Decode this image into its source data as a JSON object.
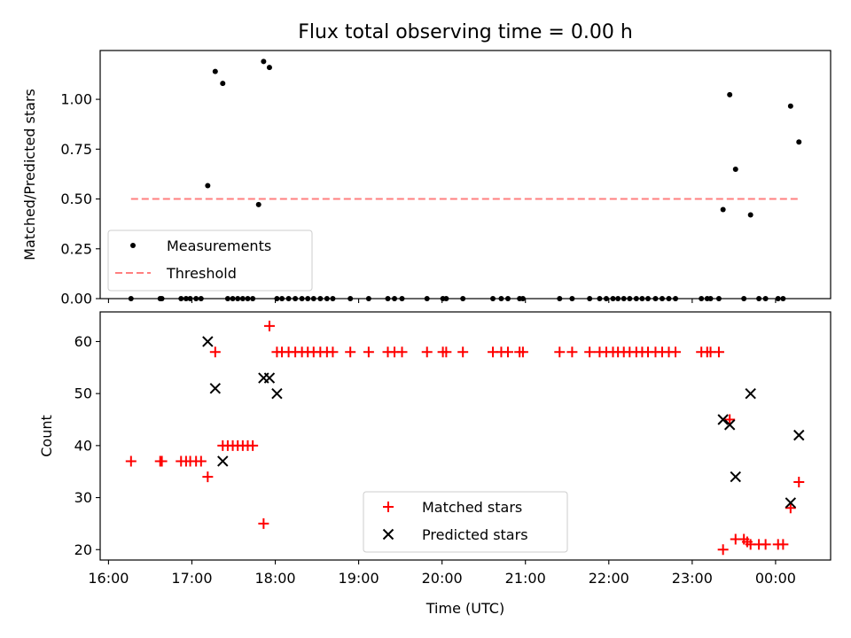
{
  "title": "Flux total observing time = 0.00 h",
  "chart_data": [
    {
      "type": "scatter",
      "panel": "top",
      "title": "Flux total observing time = 0.00 h",
      "xlabel": "",
      "ylabel": "Matched/Predicted stars",
      "xlim": [
        15.9,
        24.66
      ],
      "ylim": [
        0.0,
        1.245
      ],
      "yticks": [
        0.0,
        0.25,
        0.5,
        0.75,
        1.0
      ],
      "ytick_labels": [
        "0.00",
        "0.25",
        "0.50",
        "0.75",
        "1.00"
      ],
      "legend": {
        "placement": "lower-left",
        "entries": [
          "Measurements",
          "Threshold"
        ]
      },
      "series": [
        {
          "name": "Measurements",
          "marker": "dot",
          "color": "#000000",
          "x": [
            16.27,
            16.62,
            16.64,
            16.87,
            16.93,
            16.98,
            17.05,
            17.11,
            17.19,
            17.28,
            17.37,
            17.43,
            17.49,
            17.55,
            17.61,
            17.67,
            17.73,
            17.8,
            17.86,
            17.93,
            18.02,
            18.08,
            18.16,
            18.24,
            18.32,
            18.39,
            18.46,
            18.54,
            18.62,
            18.69,
            18.9,
            19.12,
            19.35,
            19.43,
            19.52,
            19.82,
            20.01,
            20.05,
            20.25,
            20.61,
            20.71,
            20.79,
            20.93,
            20.97,
            21.41,
            21.56,
            21.77,
            21.89,
            21.97,
            22.05,
            22.11,
            22.18,
            22.25,
            22.33,
            22.4,
            22.47,
            22.56,
            22.64,
            22.72,
            22.8,
            23.11,
            23.18,
            23.22,
            23.32,
            23.37,
            23.45,
            23.52,
            23.62,
            23.7,
            23.8,
            23.88,
            24.03,
            24.09,
            24.18,
            24.28
          ],
          "y": [
            0.0,
            0.0,
            0.0,
            0.0,
            0.0,
            0.0,
            0.0,
            0.0,
            0.567,
            1.14,
            1.08,
            0.0,
            0.0,
            0.0,
            0.0,
            0.0,
            0.0,
            0.472,
            1.19,
            1.16,
            0.0,
            0.0,
            0.0,
            0.0,
            0.0,
            0.0,
            0.0,
            0.0,
            0.0,
            0.0,
            0.0,
            0.0,
            0.0,
            0.0,
            0.0,
            0.0,
            0.0,
            0.0,
            0.0,
            0.0,
            0.0,
            0.0,
            0.0,
            0.0,
            0.0,
            0.0,
            0.0,
            0.0,
            0.0,
            0.0,
            0.0,
            0.0,
            0.0,
            0.0,
            0.0,
            0.0,
            0.0,
            0.0,
            0.0,
            0.0,
            0.0,
            0.0,
            0.0,
            0.0,
            0.447,
            1.023,
            0.649,
            0.0,
            0.42,
            0.0,
            0.0,
            0.0,
            0.0,
            0.966,
            0.786
          ]
        },
        {
          "name": "Threshold",
          "style": "dashed",
          "color": "#ff7f7f",
          "x": [
            16.27,
            24.28
          ],
          "y": [
            0.5,
            0.5
          ]
        }
      ]
    },
    {
      "type": "scatter",
      "panel": "bottom",
      "xlabel": "Time (UTC)",
      "ylabel": "Count",
      "xlim": [
        15.9,
        24.66
      ],
      "ylim": [
        18.0,
        65.7
      ],
      "xticks": [
        16,
        17,
        18,
        19,
        20,
        21,
        22,
        23,
        24
      ],
      "xtick_labels": [
        "16:00",
        "17:00",
        "18:00",
        "19:00",
        "20:00",
        "21:00",
        "22:00",
        "23:00",
        "00:00"
      ],
      "yticks": [
        20,
        30,
        40,
        50,
        60
      ],
      "ytick_labels": [
        "20",
        "30",
        "40",
        "50",
        "60"
      ],
      "legend": {
        "placement": "lower-center",
        "entries": [
          "Matched stars",
          "Predicted stars"
        ]
      },
      "series": [
        {
          "name": "Matched stars",
          "marker": "plus",
          "color": "#ff0000",
          "x": [
            16.27,
            16.62,
            16.64,
            16.87,
            16.93,
            16.98,
            17.05,
            17.11,
            17.19,
            17.28,
            17.37,
            17.43,
            17.49,
            17.55,
            17.61,
            17.67,
            17.73,
            17.86,
            17.93,
            18.02,
            18.08,
            18.16,
            18.24,
            18.32,
            18.39,
            18.46,
            18.54,
            18.62,
            18.69,
            18.9,
            19.12,
            19.35,
            19.43,
            19.52,
            19.82,
            20.01,
            20.05,
            20.25,
            20.61,
            20.71,
            20.79,
            20.93,
            20.97,
            21.41,
            21.56,
            21.77,
            21.89,
            21.97,
            22.05,
            22.11,
            22.18,
            22.25,
            22.33,
            22.4,
            22.47,
            22.56,
            22.64,
            22.72,
            22.8,
            23.11,
            23.18,
            23.22,
            23.32,
            23.37,
            23.45,
            23.52,
            23.62,
            23.66,
            23.7,
            23.8,
            23.88,
            24.03,
            24.09,
            24.18,
            24.28
          ],
          "y": [
            37,
            37,
            37,
            37,
            37,
            37,
            37,
            37,
            34,
            58,
            40,
            40,
            40,
            40,
            40,
            40,
            40,
            25,
            63,
            58,
            58,
            58,
            58,
            58,
            58,
            58,
            58,
            58,
            58,
            58,
            58,
            58,
            58,
            58,
            58,
            58,
            58,
            58,
            58,
            58,
            58,
            58,
            58,
            58,
            58,
            58,
            58,
            58,
            58,
            58,
            58,
            58,
            58,
            58,
            58,
            58,
            58,
            58,
            58,
            58,
            58,
            58,
            58,
            20,
            45,
            22,
            22,
            21.5,
            21,
            21,
            21,
            21,
            21,
            28,
            33
          ]
        },
        {
          "name": "Predicted stars",
          "marker": "x",
          "color": "#000000",
          "x": [
            17.19,
            17.28,
            17.37,
            17.86,
            17.93,
            18.02,
            23.37,
            23.45,
            23.52,
            23.7,
            24.18,
            24.28
          ],
          "y": [
            60,
            51,
            37,
            53,
            53,
            50,
            45,
            44,
            34,
            50,
            29,
            42
          ]
        }
      ]
    }
  ]
}
